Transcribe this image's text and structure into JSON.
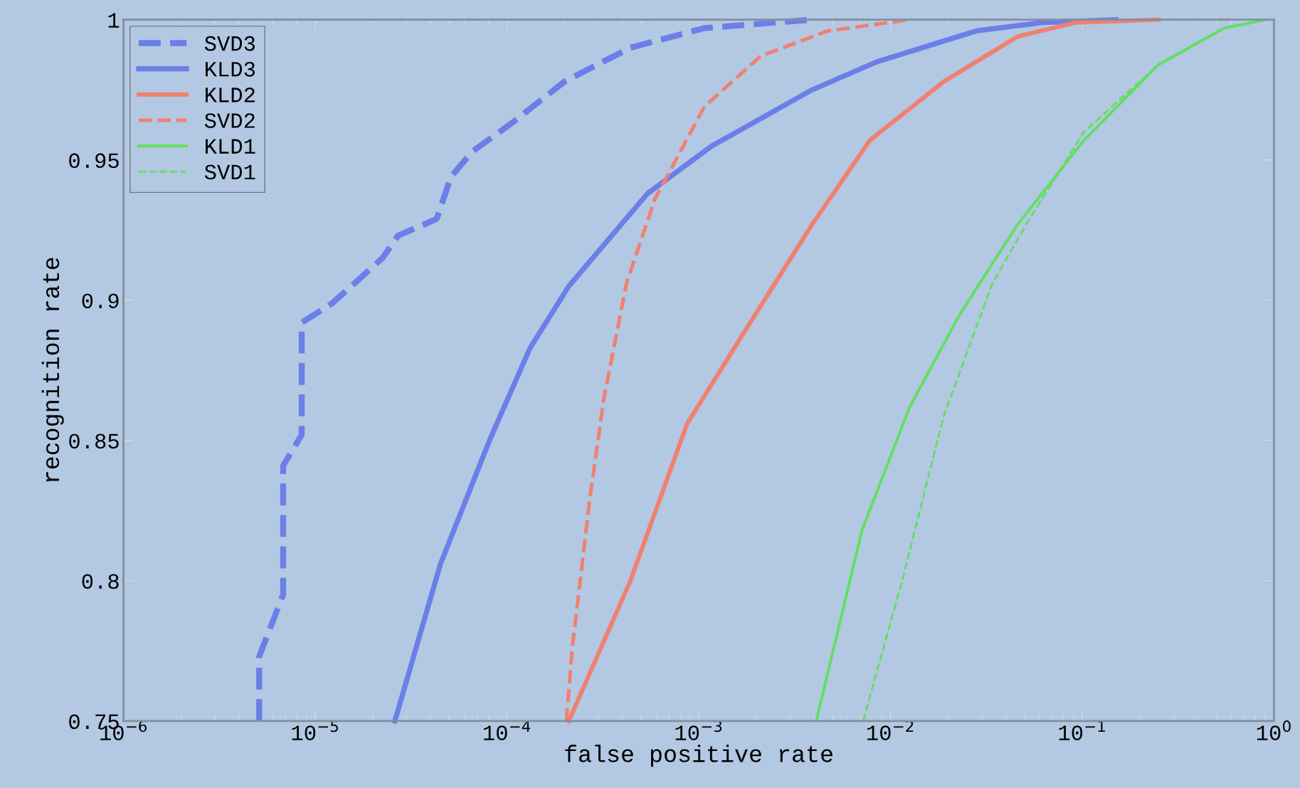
{
  "chart_data": {
    "type": "line",
    "xlabel": "false positive rate",
    "ylabel": "recognition rate",
    "log": "x",
    "xlim": [
      1e-06,
      1
    ],
    "ylim": [
      0.75,
      1
    ],
    "xticks": [
      {
        "value": 1e-06,
        "label": "10$^{−6}$"
      },
      {
        "value": 1e-05,
        "label": "10$^{−5}$"
      },
      {
        "value": 0.0001,
        "label": "10$^{−4}$"
      },
      {
        "value": 0.001,
        "label": "10$^{−3}$"
      },
      {
        "value": 0.01,
        "label": "10$^{−2}$"
      },
      {
        "value": 0.1,
        "label": "10$^{−1}$"
      },
      {
        "value": 1,
        "label": "10$^{0}$"
      }
    ],
    "yticks": [
      0.75,
      0.8,
      0.85,
      0.9,
      0.95,
      1
    ],
    "grid": false,
    "legend": "top left",
    "marker": "none",
    "series": [
      {
        "name": "SVD3",
        "color": "#6b7fe8",
        "line_style": "dashed",
        "x": [
          5.1e-06,
          5.1e-06,
          6.2e-06,
          6.8e-06,
          6.8e-06,
          8.5e-06,
          8.5e-06,
          1.23e-05,
          2.24e-05,
          2.7e-05,
          4.3e-05,
          5.1e-05,
          6.6e-05,
          0.00011,
          0.0002,
          0.00044,
          0.00107,
          0.0039
        ],
        "values": [
          0.75,
          0.773,
          0.788,
          0.795,
          0.841,
          0.852,
          0.892,
          0.899,
          0.915,
          0.923,
          0.929,
          0.944,
          0.953,
          0.964,
          0.978,
          0.99,
          0.997,
          1.0
        ]
      },
      {
        "name": "KLD3",
        "color": "#6b7fe8",
        "line_style": "solid",
        "x": [
          2.6e-05,
          4.5e-05,
          8.1e-05,
          0.000132,
          0.00021,
          0.00054,
          0.00117,
          0.0039,
          0.0085,
          0.028,
          0.062,
          0.15
        ],
        "values": [
          0.75,
          0.806,
          0.85,
          0.883,
          0.905,
          0.938,
          0.955,
          0.975,
          0.985,
          0.996,
          0.999,
          1.0
        ]
      },
      {
        "name": "KLD2",
        "color": "#f08070",
        "line_style": "solid",
        "x": [
          0.00021,
          0.00044,
          0.00087,
          0.00174,
          0.0039,
          0.0078,
          0.019,
          0.046,
          0.093,
          0.25
        ],
        "values": [
          0.75,
          0.8,
          0.856,
          0.889,
          0.927,
          0.957,
          0.978,
          0.994,
          0.999,
          1.0
        ]
      },
      {
        "name": "SVD2",
        "color": "#f08070",
        "line_style": "dashed",
        "x": [
          0.000204,
          0.000219,
          0.00027,
          0.00032,
          0.00042,
          0.00059,
          0.00107,
          0.0021,
          0.0047,
          0.0126
        ],
        "values": [
          0.75,
          0.776,
          0.829,
          0.865,
          0.906,
          0.936,
          0.969,
          0.987,
          0.996,
          1.0
        ]
      },
      {
        "name": "KLD1",
        "color": "#60e060",
        "line_style": "solid",
        "x": [
          0.0041,
          0.0071,
          0.0126,
          0.023,
          0.046,
          0.102,
          0.25,
          0.55,
          0.91
        ],
        "values": [
          0.75,
          0.818,
          0.862,
          0.895,
          0.927,
          0.957,
          0.984,
          0.997,
          1.0
        ]
      },
      {
        "name": "SVD1",
        "color": "#60e060",
        "line_style": "dashed",
        "x": [
          0.0072,
          0.0115,
          0.019,
          0.034,
          0.051,
          0.102,
          0.25,
          0.55,
          0.91
        ],
        "values": [
          0.75,
          0.8,
          0.859,
          0.906,
          0.927,
          0.96,
          0.984,
          0.997,
          1.0
        ]
      }
    ]
  }
}
